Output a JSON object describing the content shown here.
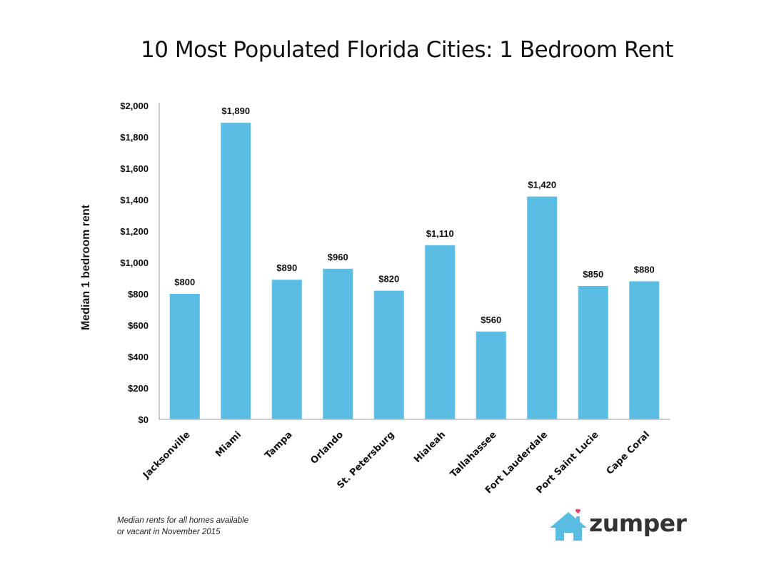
{
  "chart_data": {
    "type": "bar",
    "title": "10 Most Populated Florida Cities: 1 Bedroom Rent",
    "xlabel": "",
    "ylabel": "Median 1 bedroom rent",
    "categories": [
      "Jacksonville",
      "Miami",
      "Tampa",
      "Orlando",
      "St. Petersburg",
      "Hialeah",
      "Tallahassee",
      "Fort Lauderdale",
      "Port Saint Lucie",
      "Cape Coral"
    ],
    "values": [
      800,
      1890,
      890,
      960,
      820,
      1110,
      560,
      1420,
      850,
      880
    ],
    "data_labels": [
      "$800",
      "$1,890",
      "$890",
      "$960",
      "$820",
      "$1,110",
      "$560",
      "$1,420",
      "$850",
      "$880"
    ],
    "ylim": [
      0,
      2000
    ],
    "yticks": [
      0,
      200,
      400,
      600,
      800,
      1000,
      1200,
      1400,
      1600,
      1800,
      2000
    ],
    "ytick_labels": [
      "$0",
      "$200",
      "$400",
      "$600",
      "$800",
      "$1,000",
      "$1,200",
      "$1,400",
      "$1,600",
      "$1,800",
      "$2,000"
    ],
    "grid": false,
    "legend": "none",
    "bar_color": "#5bbde4",
    "axis_color": "#bbbbbb"
  },
  "footnote": {
    "line1": "Median rents for all homes available",
    "line2": "or vacant in November 2015"
  },
  "logo": {
    "text": "zumper",
    "house_color": "#5bbde4",
    "heart_color": "#ee3f6f"
  }
}
